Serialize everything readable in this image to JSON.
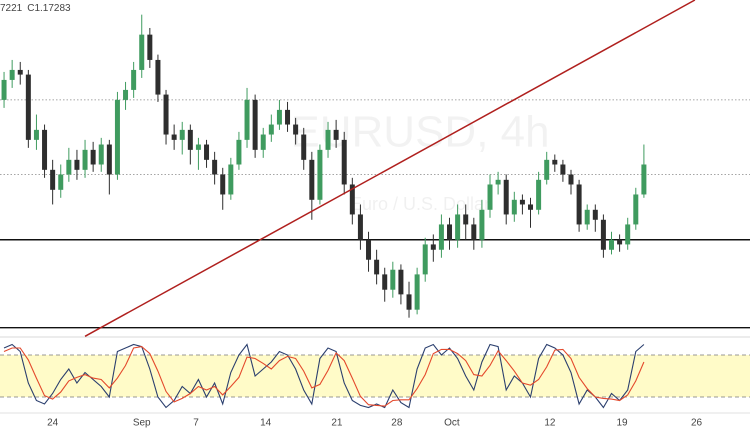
{
  "header": {
    "ohlc_fragment": "7221",
    "close_label": "C1.17283"
  },
  "chart_data": [
    {
      "type": "candlestick",
      "watermark": "EURUSD, 4h",
      "watermark_subtitle": "Euro / U.S. Dollar",
      "xlim": [
        -0.5,
        92.1
      ],
      "ylim": [
        1.154,
        1.204
      ],
      "up_color": "#3f9b5f",
      "down_color": "#2e2e2e",
      "open": [
        1.189,
        1.192,
        1.1935,
        1.1928,
        1.183,
        1.1845,
        1.1785,
        1.1755,
        1.1778,
        1.18,
        1.1785,
        1.1815,
        1.1793,
        1.1823,
        1.1778,
        1.189,
        1.1905,
        1.1935,
        1.1988,
        1.195,
        1.1898,
        1.1838,
        1.183,
        1.1845,
        1.1815,
        1.1823,
        1.18,
        1.1778,
        1.1748,
        1.1793,
        1.183,
        1.189,
        1.1815,
        1.1838,
        1.1853,
        1.1875,
        1.1853,
        1.1838,
        1.18,
        1.174,
        1.1815,
        1.1845,
        1.183,
        1.1763,
        1.1718,
        1.168,
        1.165,
        1.1628,
        1.1605,
        1.1635,
        1.1598,
        1.1575,
        1.1628,
        1.1673,
        1.1665,
        1.1703,
        1.168,
        1.1718,
        1.1703,
        1.168,
        1.1725,
        1.1763,
        1.177,
        1.1718,
        1.174,
        1.1733,
        1.1725,
        1.177,
        1.18,
        1.1793,
        1.1778,
        1.1763,
        1.1703,
        1.1725,
        1.171,
        1.1665,
        1.168,
        1.1673,
        1.1703,
        1.1748
      ],
      "high": [
        1.1932,
        1.195,
        1.1947,
        1.1935,
        1.1868,
        1.1853,
        1.18,
        1.1793,
        1.1818,
        1.1815,
        1.183,
        1.1827,
        1.1833,
        1.183,
        1.1902,
        1.1917,
        1.1947,
        1.2018,
        1.1998,
        1.1958,
        1.1905,
        1.1853,
        1.1857,
        1.1853,
        1.1833,
        1.183,
        1.1812,
        1.1788,
        1.1803,
        1.1842,
        1.1908,
        1.1898,
        1.1848,
        1.1868,
        1.189,
        1.1887,
        1.1863,
        1.1848,
        1.1812,
        1.1823,
        1.1857,
        1.186,
        1.1842,
        1.1773,
        1.1733,
        1.1692,
        1.1665,
        1.1638,
        1.1647,
        1.1643,
        1.1617,
        1.1638,
        1.1683,
        1.1688,
        1.1718,
        1.1713,
        1.1733,
        1.1733,
        1.1713,
        1.174,
        1.1778,
        1.1782,
        1.1778,
        1.1752,
        1.1748,
        1.1743,
        1.1782,
        1.1812,
        1.1808,
        1.18,
        1.1785,
        1.177,
        1.1733,
        1.1733,
        1.1718,
        1.1692,
        1.1688,
        1.1713,
        1.1758,
        1.1823
      ],
      "low": [
        1.1878,
        1.1908,
        1.1913,
        1.1818,
        1.1815,
        1.1773,
        1.1733,
        1.1743,
        1.1767,
        1.177,
        1.1773,
        1.1782,
        1.1782,
        1.1748,
        1.177,
        1.1875,
        1.1893,
        1.1923,
        1.1938,
        1.1887,
        1.1823,
        1.1815,
        1.1808,
        1.1793,
        1.1785,
        1.1788,
        1.1763,
        1.1725,
        1.174,
        1.1785,
        1.1818,
        1.1803,
        1.1803,
        1.1827,
        1.1845,
        1.1842,
        1.1823,
        1.1785,
        1.171,
        1.1733,
        1.1803,
        1.1818,
        1.1748,
        1.1703,
        1.1665,
        1.1632,
        1.1613,
        1.1587,
        1.1593,
        1.1583,
        1.1563,
        1.1568,
        1.1617,
        1.1647,
        1.1653,
        1.1665,
        1.1668,
        1.168,
        1.1665,
        1.1668,
        1.1713,
        1.1748,
        1.1703,
        1.1707,
        1.1718,
        1.1698,
        1.1718,
        1.1763,
        1.1782,
        1.1767,
        1.1748,
        1.1692,
        1.1695,
        1.1692,
        1.1653,
        1.1658,
        1.1662,
        1.1665,
        1.1695,
        1.1743
      ],
      "close": [
        1.192,
        1.1935,
        1.1928,
        1.183,
        1.1845,
        1.1785,
        1.1755,
        1.1778,
        1.18,
        1.1785,
        1.1815,
        1.1793,
        1.1823,
        1.1778,
        1.189,
        1.1905,
        1.1935,
        1.1988,
        1.195,
        1.1898,
        1.1838,
        1.183,
        1.1845,
        1.1815,
        1.1823,
        1.18,
        1.1778,
        1.1748,
        1.1793,
        1.183,
        1.189,
        1.1815,
        1.1838,
        1.1853,
        1.1875,
        1.1853,
        1.1838,
        1.18,
        1.174,
        1.1815,
        1.1845,
        1.183,
        1.1763,
        1.1718,
        1.168,
        1.165,
        1.1628,
        1.1605,
        1.1635,
        1.1598,
        1.1575,
        1.1628,
        1.1673,
        1.1665,
        1.1703,
        1.168,
        1.1718,
        1.1703,
        1.168,
        1.1725,
        1.1763,
        1.177,
        1.1718,
        1.174,
        1.1733,
        1.1725,
        1.177,
        1.18,
        1.1793,
        1.1778,
        1.1763,
        1.1703,
        1.1725,
        1.171,
        1.1665,
        1.168,
        1.1673,
        1.1703,
        1.1748,
        1.1793
      ],
      "hlines": [
        {
          "value": 1.189,
          "style": "dotted"
        },
        {
          "value": 1.1778,
          "style": "dotted"
        },
        {
          "value": 1.168,
          "style": "solid"
        },
        {
          "value": 1.1548,
          "style": "solid"
        }
      ],
      "trendline": {
        "x": [
          10,
          85.3
        ],
        "y": [
          1.1535,
          1.204
        ],
        "color": "#b0201e"
      }
    },
    {
      "type": "line",
      "xlim": [
        -0.5,
        92.1
      ],
      "ylim": [
        0,
        100
      ],
      "band": [
        20,
        80
      ],
      "band_color": "#fffbc8",
      "xticks": [
        {
          "value": 6,
          "label": "24"
        },
        {
          "value": 17,
          "label": "Sep"
        },
        {
          "value": 23.7,
          "label": "7"
        },
        {
          "value": 32.3,
          "label": "14"
        },
        {
          "value": 41.1,
          "label": "21"
        },
        {
          "value": 48.5,
          "label": "28"
        },
        {
          "value": 55.3,
          "label": "Oct"
        },
        {
          "value": 67.4,
          "label": "12"
        },
        {
          "value": 76.3,
          "label": "19"
        },
        {
          "value": 85.5,
          "label": "26"
        }
      ],
      "series": [
        {
          "color": "#2b3f6e",
          "values": [
            90,
            95,
            85,
            40,
            15,
            10,
            25,
            45,
            60,
            40,
            55,
            45,
            35,
            20,
            85,
            90,
            95,
            92,
            60,
            20,
            5,
            15,
            35,
            25,
            45,
            20,
            40,
            10,
            55,
            80,
            95,
            50,
            60,
            70,
            85,
            80,
            60,
            30,
            10,
            75,
            90,
            85,
            40,
            15,
            8,
            5,
            10,
            5,
            30,
            12,
            5,
            60,
            90,
            95,
            80,
            90,
            75,
            50,
            30,
            70,
            95,
            92,
            30,
            50,
            40,
            20,
            75,
            95,
            90,
            80,
            55,
            10,
            30,
            20,
            5,
            25,
            15,
            30,
            85,
            95
          ]
        },
        {
          "color": "#e4492c",
          "values": [
            85,
            90,
            90,
            73,
            47,
            22,
            17,
            27,
            43,
            48,
            52,
            47,
            45,
            33,
            47,
            65,
            90,
            92,
            82,
            57,
            28,
            13,
            18,
            25,
            35,
            30,
            35,
            23,
            35,
            48,
            77,
            75,
            68,
            60,
            72,
            78,
            75,
            57,
            33,
            38,
            58,
            83,
            72,
            47,
            21,
            9,
            8,
            7,
            15,
            16,
            16,
            32,
            52,
            82,
            88,
            88,
            82,
            72,
            52,
            50,
            65,
            86,
            72,
            57,
            40,
            37,
            45,
            63,
            87,
            88,
            75,
            48,
            32,
            20,
            18,
            17,
            15,
            23,
            43,
            70
          ]
        }
      ]
    }
  ]
}
